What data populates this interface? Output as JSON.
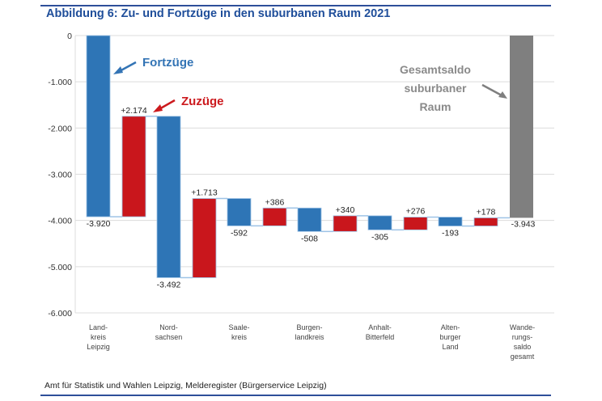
{
  "header": {
    "title": "Abbildung 6: Zu- und Fortzüge in den suburbanen Raum 2021"
  },
  "footer": {
    "source": "Amt für Statistik und Wahlen Leipzig, Melderegister (Bürgerservice Leipzig)"
  },
  "chart_data": {
    "type": "bar",
    "subtype": "waterfall",
    "title": "Abbildung 6: Zu- und Fortzüge in den suburbanen Raum 2021",
    "xlabel": "",
    "ylabel": "",
    "ylim": [
      -6000,
      0
    ],
    "yticks": [
      0,
      -1000,
      -2000,
      -3000,
      -4000,
      -5000,
      -6000
    ],
    "ytick_labels": [
      "0",
      "-1.000",
      "-2.000",
      "-3.000",
      "-4.000",
      "-5.000",
      "-6.000"
    ],
    "grid": true,
    "colors": {
      "fortzuege": "#2e75b6",
      "zuzuege": "#c9161c",
      "saldo": "#7f7f7f",
      "connector": "#9dc3e6"
    },
    "categories": [
      {
        "label": [
          "Land-",
          "kreis",
          "Leipzig"
        ]
      },
      {
        "label": [
          "Nord-",
          "sachsen"
        ]
      },
      {
        "label": [
          "Saale-",
          "kreis"
        ]
      },
      {
        "label": [
          "Burgen-",
          "landkreis"
        ]
      },
      {
        "label": [
          "Anhalt-",
          "Bitterfeld"
        ]
      },
      {
        "label": [
          "Alten-",
          "burger",
          "Land"
        ]
      },
      {
        "label": [
          "Wande-",
          "rungs-",
          "saldo",
          "gesamt"
        ]
      }
    ],
    "steps": [
      {
        "category": 0,
        "kind": "fortzuege",
        "value": -3920,
        "label": "-3.920"
      },
      {
        "category": 0,
        "kind": "zuzuege",
        "value": 2174,
        "label": "+2.174"
      },
      {
        "category": 1,
        "kind": "fortzuege",
        "value": -3492,
        "label": "-3.492"
      },
      {
        "category": 1,
        "kind": "zuzuege",
        "value": 1713,
        "label": "+1.713"
      },
      {
        "category": 2,
        "kind": "fortzuege",
        "value": -592,
        "label": "-592"
      },
      {
        "category": 2,
        "kind": "zuzuege",
        "value": 386,
        "label": "+386"
      },
      {
        "category": 3,
        "kind": "fortzuege",
        "value": -508,
        "label": "-508"
      },
      {
        "category": 3,
        "kind": "zuzuege",
        "value": 340,
        "label": "+340"
      },
      {
        "category": 4,
        "kind": "fortzuege",
        "value": -305,
        "label": "-305"
      },
      {
        "category": 4,
        "kind": "zuzuege",
        "value": 276,
        "label": "+276"
      },
      {
        "category": 5,
        "kind": "fortzuege",
        "value": -193,
        "label": "-193"
      },
      {
        "category": 5,
        "kind": "zuzuege",
        "value": 178,
        "label": "+178"
      },
      {
        "category": 6,
        "kind": "saldo",
        "value": -3943,
        "label": "-3.943",
        "total": true
      }
    ],
    "annotations": {
      "fortzuege": "Fortzüge",
      "zuzuege": "Zuzüge",
      "saldo": [
        "Gesamtsaldo",
        "suburbaner",
        "Raum"
      ]
    },
    "legend": "none"
  }
}
